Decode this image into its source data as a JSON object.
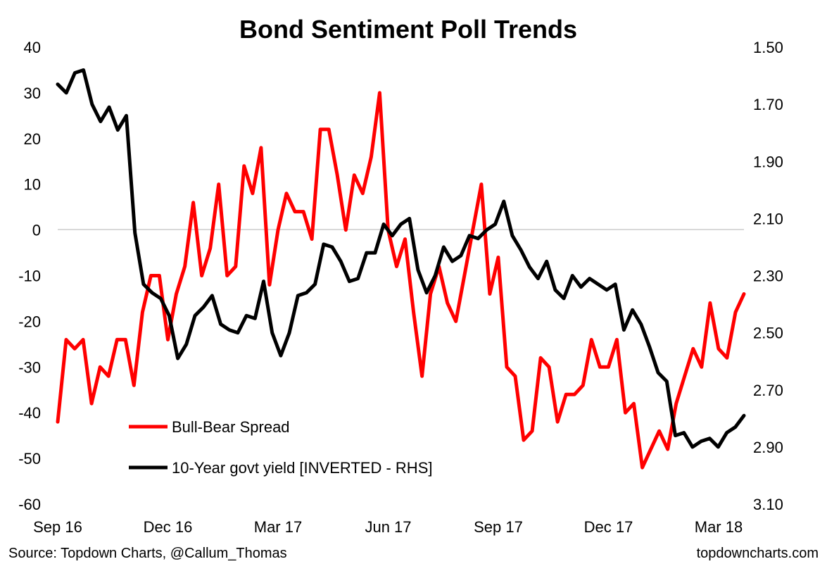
{
  "chart_data": {
    "type": "line",
    "title": "Bond Sentiment Poll Trends",
    "x_tick_labels": [
      "Sep 16",
      "Dec 16",
      "Mar 17",
      "Jun 17",
      "Sep 17",
      "Dec 17",
      "Mar 18"
    ],
    "y_left": {
      "min": -60,
      "max": 40,
      "step": 10,
      "tick_labels": [
        "40",
        "30",
        "20",
        "10",
        "0",
        "-10",
        "-20",
        "-30",
        "-40",
        "-50",
        "-60"
      ]
    },
    "y_right": {
      "min": 1.5,
      "max": 3.1,
      "inverted": true,
      "tick_labels": [
        "1.50",
        "1.70",
        "1.90",
        "2.10",
        "2.30",
        "2.50",
        "2.70",
        "2.90",
        "3.10"
      ]
    },
    "zero_gridline": true,
    "legend_position": "bottom-left",
    "series": [
      {
        "name": "Bull-Bear Spread",
        "axis": "left",
        "color": "#ff0000",
        "values": [
          -42,
          -24,
          -26,
          -24,
          -38,
          -30,
          -32,
          -24,
          -24,
          -34,
          -18,
          -10,
          -10,
          -24,
          -14,
          -8,
          6,
          -10,
          -4,
          10,
          -10,
          -8,
          14,
          8,
          18,
          -12,
          0,
          8,
          4,
          4,
          -2,
          22,
          22,
          12,
          0,
          12,
          8,
          16,
          30,
          0,
          -8,
          -2,
          -18,
          -32,
          -14,
          -8,
          -16,
          -20,
          -10,
          0,
          10,
          -14,
          -6,
          -30,
          -32,
          -46,
          -44,
          -28,
          -30,
          -42,
          -36,
          -36,
          -34,
          -24,
          -30,
          -30,
          -24,
          -40,
          -38,
          -52,
          -48,
          -44,
          -48,
          -38,
          -32,
          -26,
          -30,
          -16,
          -26,
          -28,
          -18,
          -14
        ]
      },
      {
        "name": "10-Year govt yield [INVERTED - RHS]",
        "axis": "right",
        "color": "#000000",
        "values": [
          1.63,
          1.66,
          1.59,
          1.58,
          1.7,
          1.76,
          1.71,
          1.79,
          1.74,
          2.15,
          2.33,
          2.36,
          2.38,
          2.44,
          2.59,
          2.54,
          2.44,
          2.41,
          2.37,
          2.47,
          2.49,
          2.5,
          2.44,
          2.45,
          2.32,
          2.5,
          2.58,
          2.5,
          2.37,
          2.36,
          2.33,
          2.19,
          2.2,
          2.25,
          2.32,
          2.31,
          2.22,
          2.22,
          2.12,
          2.16,
          2.12,
          2.1,
          2.28,
          2.36,
          2.3,
          2.2,
          2.25,
          2.23,
          2.16,
          2.17,
          2.14,
          2.12,
          2.04,
          2.16,
          2.21,
          2.27,
          2.31,
          2.25,
          2.35,
          2.38,
          2.3,
          2.34,
          2.31,
          2.33,
          2.35,
          2.33,
          2.49,
          2.42,
          2.47,
          2.55,
          2.64,
          2.67,
          2.86,
          2.85,
          2.9,
          2.88,
          2.87,
          2.9,
          2.85,
          2.83,
          2.79
        ]
      }
    ],
    "footer_left": "Source: Topdown Charts, @Callum_Thomas",
    "footer_right": "topdowncharts.com"
  }
}
